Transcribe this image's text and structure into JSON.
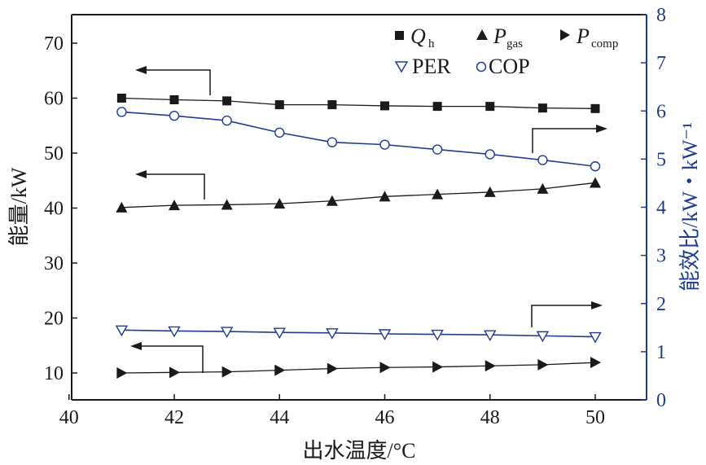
{
  "chart_data": {
    "type": "line",
    "x": [
      41,
      42,
      43,
      44,
      45,
      46,
      47,
      48,
      49,
      50
    ],
    "xlim": [
      40,
      51
    ],
    "xticks": [
      "40",
      "42",
      "44",
      "46",
      "48",
      "50"
    ],
    "xlabel": "出水温度/°C",
    "ylabel_left": "能量/kW",
    "ylim_left": [
      5,
      75
    ],
    "yticks_left": [
      "10",
      "20",
      "30",
      "40",
      "50",
      "60",
      "70"
    ],
    "ylabel_right": "能效比/kW・kW⁻¹",
    "ylim_right": [
      0,
      8
    ],
    "yticks_right": [
      "0",
      "1",
      "2",
      "3",
      "4",
      "5",
      "6",
      "7",
      "8"
    ],
    "series": [
      {
        "name": "Qh",
        "axis": "left",
        "marker": "square",
        "values": [
          60.0,
          59.7,
          59.5,
          58.8,
          58.8,
          58.6,
          58.5,
          58.5,
          58.2,
          58.1
        ]
      },
      {
        "name": "Pgas",
        "axis": "left",
        "marker": "triangle-up",
        "values": [
          40.1,
          40.5,
          40.6,
          40.8,
          41.3,
          42.1,
          42.5,
          42.9,
          43.5,
          44.6
        ]
      },
      {
        "name": "Pcomp",
        "axis": "left",
        "marker": "triangle-right",
        "values": [
          10.0,
          10.1,
          10.2,
          10.5,
          10.8,
          11.0,
          11.1,
          11.3,
          11.5,
          11.9
        ]
      },
      {
        "name": "PER",
        "axis": "right",
        "marker": "triangle-down-open",
        "values": [
          1.45,
          1.43,
          1.42,
          1.4,
          1.39,
          1.37,
          1.36,
          1.35,
          1.33,
          1.31
        ]
      },
      {
        "name": "COP",
        "axis": "right",
        "marker": "circle-open",
        "values": [
          5.98,
          5.9,
          5.8,
          5.55,
          5.35,
          5.3,
          5.2,
          5.1,
          4.98,
          4.85
        ]
      }
    ],
    "legend": {
      "qh_main": "Q",
      "qh_sub": "h",
      "pgas_main": "P",
      "pgas_sub": "gas",
      "pcomp_main": "P",
      "pcomp_sub": "comp",
      "per": "PER",
      "cop": "COP"
    },
    "colors": {
      "black": "#1a1a1a",
      "blue": "#1f3d8f"
    }
  }
}
